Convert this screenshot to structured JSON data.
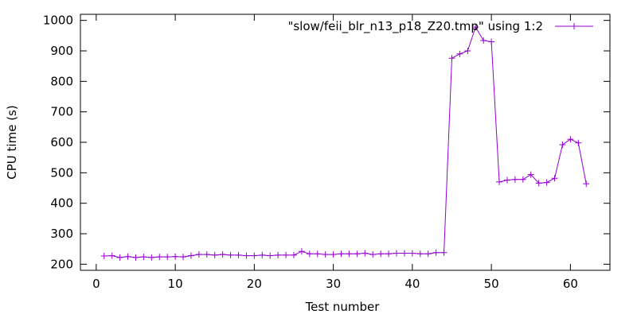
{
  "chart_data": {
    "type": "line",
    "xlabel": "Test number",
    "ylabel": "CPU time (s)",
    "xlim": [
      -2,
      65
    ],
    "ylim": [
      180,
      1020
    ],
    "xticks": [
      0,
      10,
      20,
      30,
      40,
      50,
      60
    ],
    "yticks": [
      200,
      300,
      400,
      500,
      600,
      700,
      800,
      900,
      1000
    ],
    "grid": false,
    "legend_position": "top-right",
    "series": [
      {
        "name": "\"slow/feii_blr_n13_p18_Z20.tmp\" using 1:2",
        "color": "#9400d3",
        "marker": "plus",
        "x": [
          1,
          2,
          3,
          4,
          5,
          6,
          7,
          8,
          9,
          10,
          11,
          12,
          13,
          14,
          15,
          16,
          17,
          18,
          19,
          20,
          21,
          22,
          23,
          24,
          25,
          26,
          27,
          28,
          29,
          30,
          31,
          32,
          33,
          34,
          35,
          36,
          37,
          38,
          39,
          40,
          41,
          42,
          43,
          44,
          45,
          46,
          47,
          48,
          49,
          50,
          51,
          52,
          53,
          54,
          55,
          56,
          57,
          58,
          59,
          60,
          61,
          62
        ],
        "y": [
          227,
          228,
          222,
          225,
          222,
          224,
          222,
          224,
          224,
          225,
          224,
          228,
          232,
          232,
          230,
          232,
          230,
          230,
          228,
          228,
          230,
          228,
          230,
          230,
          230,
          242,
          234,
          234,
          232,
          232,
          234,
          234,
          234,
          236,
          232,
          234,
          234,
          236,
          236,
          236,
          234,
          234,
          238,
          238,
          876,
          890,
          900,
          978,
          934,
          930,
          470,
          476,
          478,
          478,
          494,
          466,
          468,
          482,
          592,
          610,
          598,
          464
        ]
      }
    ]
  }
}
